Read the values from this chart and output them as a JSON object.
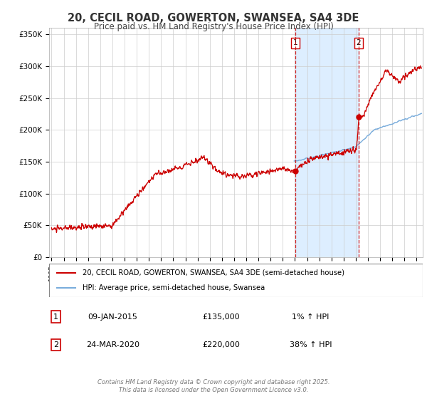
{
  "title": "20, CECIL ROAD, GOWERTON, SWANSEA, SA4 3DE",
  "subtitle": "Price paid vs. HM Land Registry's House Price Index (HPI)",
  "title_fontsize": 10.5,
  "subtitle_fontsize": 8.5,
  "bg_color": "#ffffff",
  "plot_bg_color": "#ffffff",
  "grid_color": "#cccccc",
  "hpi_line_color": "#7aaddc",
  "price_line_color": "#cc0000",
  "highlight_bg": "#ddeeff",
  "dashed_line_color": "#cc0000",
  "marker_color": "#cc0000",
  "legend_border_color": "#cc0000",
  "ylim": [
    0,
    360000
  ],
  "xlim_start": 1994.8,
  "xlim_end": 2025.5,
  "ytick_values": [
    0,
    50000,
    100000,
    150000,
    200000,
    250000,
    300000,
    350000
  ],
  "ytick_labels": [
    "£0",
    "£50K",
    "£100K",
    "£150K",
    "£200K",
    "£250K",
    "£300K",
    "£350K"
  ],
  "xtick_values": [
    1995,
    1996,
    1997,
    1998,
    1999,
    2000,
    2001,
    2002,
    2003,
    2004,
    2005,
    2006,
    2007,
    2008,
    2009,
    2010,
    2011,
    2012,
    2013,
    2014,
    2015,
    2016,
    2017,
    2018,
    2019,
    2020,
    2021,
    2022,
    2023,
    2024,
    2025
  ],
  "marker1_x": 2015.03,
  "marker1_y": 135000,
  "marker1_label": "1",
  "marker1_date": "09-JAN-2015",
  "marker1_price": "£135,000",
  "marker1_hpi": "1% ↑ HPI",
  "marker2_x": 2020.23,
  "marker2_y": 220000,
  "marker2_label": "2",
  "marker2_date": "24-MAR-2020",
  "marker2_price": "£220,000",
  "marker2_hpi": "38% ↑ HPI",
  "legend_label1": "20, CECIL ROAD, GOWERTON, SWANSEA, SA4 3DE (semi-detached house)",
  "legend_label2": "HPI: Average price, semi-detached house, Swansea",
  "footer": "Contains HM Land Registry data © Crown copyright and database right 2025.\nThis data is licensed under the Open Government Licence v3.0."
}
